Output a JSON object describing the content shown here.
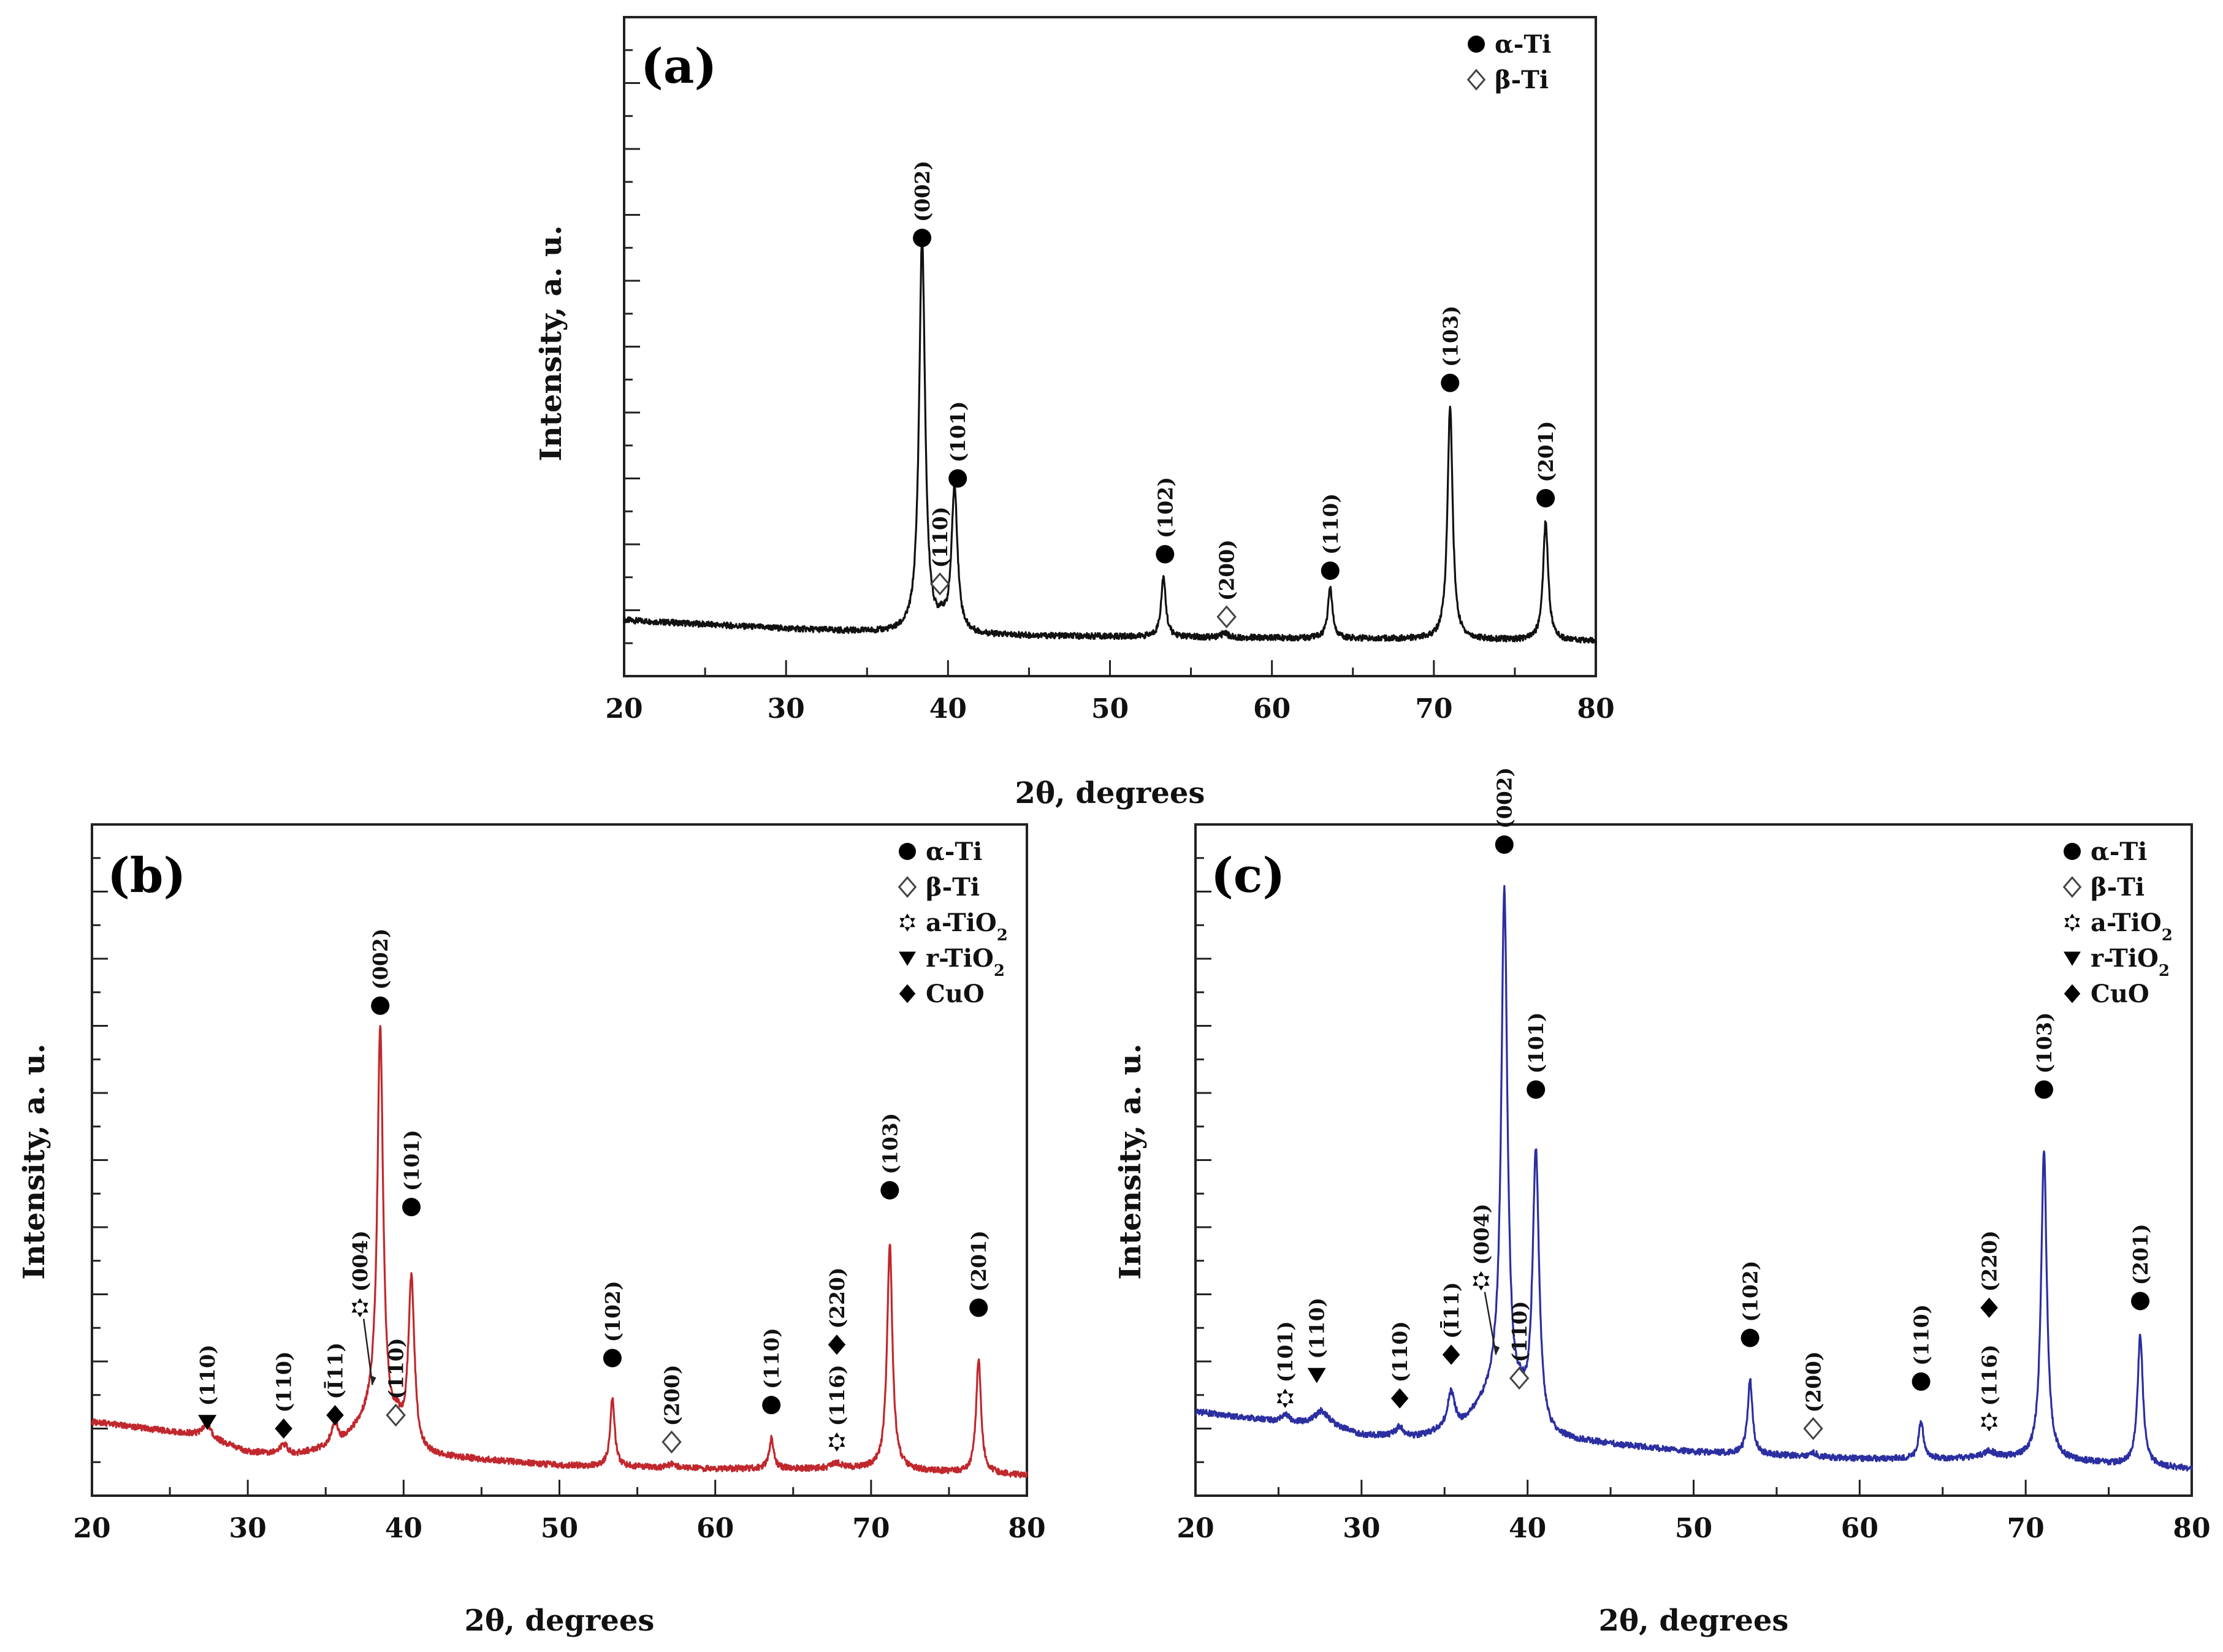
{
  "figure": {
    "description_labels": [
      "(a)",
      "(b)",
      "(c)"
    ]
  },
  "chart_data": [
    {
      "type": "line",
      "panel": "(a)",
      "xlabel": "2θ, degrees",
      "ylabel": "Intensity, a. u.",
      "xlim": [
        20,
        80
      ],
      "ylim": [
        0,
        100
      ],
      "xticks": [
        "20",
        "30",
        "40",
        "50",
        "60",
        "70",
        "80"
      ],
      "color": "#111111",
      "legend": {
        "position": "top-right",
        "entries": [
          {
            "symbol": "circle",
            "label": "α-Ti"
          },
          {
            "symbol": "diamond-open",
            "label": "β-Ti"
          }
        ]
      },
      "series": [
        {
          "name": "pattern",
          "baseline": [
            [
              20,
              8.5
            ],
            [
              30,
              7.2
            ],
            [
              40,
              6.2
            ],
            [
              50,
              6.0
            ],
            [
              60,
              5.8
            ],
            [
              70,
              5.6
            ],
            [
              80,
              5.3
            ]
          ],
          "peaks": [
            {
              "x": 38.4,
              "height": 60.0,
              "width": 0.28
            },
            {
              "x": 39.6,
              "height": 1.5,
              "width": 0.25
            },
            {
              "x": 40.4,
              "height": 22.0,
              "width": 0.28
            },
            {
              "x": 53.3,
              "height": 9.0,
              "width": 0.22
            },
            {
              "x": 57.1,
              "height": 0.8,
              "width": 0.25
            },
            {
              "x": 63.6,
              "height": 7.5,
              "width": 0.22
            },
            {
              "x": 71.0,
              "height": 35.5,
              "width": 0.24
            },
            {
              "x": 76.9,
              "height": 18.0,
              "width": 0.24
            }
          ]
        }
      ],
      "annotations": [
        {
          "x": 38.4,
          "y": 66.5,
          "marker": "circle",
          "label": "(002)"
        },
        {
          "x": 39.5,
          "y": 14.0,
          "marker": "diamond-open",
          "label": "(110)"
        },
        {
          "x": 40.6,
          "y": 30.0,
          "marker": "circle",
          "label": "(101)"
        },
        {
          "x": 53.4,
          "y": 18.5,
          "marker": "circle",
          "label": "(102)"
        },
        {
          "x": 57.2,
          "y": 9.0,
          "marker": "diamond-open",
          "label": "(200)"
        },
        {
          "x": 63.6,
          "y": 16.0,
          "marker": "circle",
          "label": "(110)"
        },
        {
          "x": 71.0,
          "y": 44.5,
          "marker": "circle",
          "label": "(103)"
        },
        {
          "x": 76.9,
          "y": 27.0,
          "marker": "circle",
          "label": "(201)"
        }
      ]
    },
    {
      "type": "line",
      "panel": "(b)",
      "xlabel": "2θ, degrees",
      "ylabel": "Intensity, a. u.",
      "xlim": [
        20,
        80
      ],
      "ylim": [
        0,
        100
      ],
      "xticks": [
        "20",
        "30",
        "40",
        "50",
        "60",
        "70",
        "80"
      ],
      "color": "#c0282d",
      "legend": {
        "position": "top-right",
        "entries": [
          {
            "symbol": "circle",
            "label": "α-Ti"
          },
          {
            "symbol": "diamond-open",
            "label": "β-Ti"
          },
          {
            "symbol": "star",
            "label": "a-TiO",
            "subscript": "2"
          },
          {
            "symbol": "triangle-down",
            "label": "r-TiO",
            "subscript": "2"
          },
          {
            "symbol": "diamond",
            "label": "CuO"
          }
        ]
      },
      "series": [
        {
          "name": "pattern",
          "baseline": [
            [
              20,
              11.0
            ],
            [
              27,
              9.0
            ],
            [
              30,
              6.5
            ],
            [
              33,
              6.0
            ],
            [
              36,
              7.5
            ],
            [
              38,
              12.0
            ],
            [
              41,
              6.0
            ],
            [
              50,
              4.5
            ],
            [
              60,
              4.0
            ],
            [
              70,
              4.0
            ],
            [
              80,
              3.0
            ]
          ],
          "peaks": [
            {
              "x": 27.4,
              "height": 2.0,
              "width": 0.4
            },
            {
              "x": 32.3,
              "height": 1.5,
              "width": 0.4
            },
            {
              "x": 35.6,
              "height": 3.5,
              "width": 0.35
            },
            {
              "x": 38.5,
              "height": 58.5,
              "width": 0.28
            },
            {
              "x": 39.6,
              "height": 1.5,
              "width": 0.25
            },
            {
              "x": 40.5,
              "height": 25.0,
              "width": 0.3
            },
            {
              "x": 53.4,
              "height": 10.0,
              "width": 0.22
            },
            {
              "x": 57.2,
              "height": 0.6,
              "width": 0.3
            },
            {
              "x": 63.6,
              "height": 4.5,
              "width": 0.22
            },
            {
              "x": 67.8,
              "height": 0.8,
              "width": 0.5
            },
            {
              "x": 71.2,
              "height": 33.5,
              "width": 0.26
            },
            {
              "x": 76.9,
              "height": 17.0,
              "width": 0.24
            }
          ]
        }
      ],
      "annotations": [
        {
          "x": 27.4,
          "y": 11.0,
          "marker": "triangle-down",
          "label": "(110)"
        },
        {
          "x": 32.3,
          "y": 10.0,
          "marker": "diamond",
          "label": "(110)"
        },
        {
          "x": 35.6,
          "y": 12.0,
          "marker": "diamond",
          "label": "(Ī11)"
        },
        {
          "x": 37.2,
          "y": 28.0,
          "marker": "star",
          "label": "(004)",
          "arrow_to": [
            38.0,
            16.5
          ]
        },
        {
          "x": 39.5,
          "y": 12.0,
          "marker": "diamond-open",
          "label": "(110)"
        },
        {
          "x": 38.5,
          "y": 73.0,
          "marker": "circle",
          "label": "(002)"
        },
        {
          "x": 40.5,
          "y": 43.0,
          "marker": "circle",
          "label": "(101)"
        },
        {
          "x": 53.4,
          "y": 20.5,
          "marker": "circle",
          "label": "(102)"
        },
        {
          "x": 57.2,
          "y": 8.0,
          "marker": "diamond-open",
          "label": "(200)"
        },
        {
          "x": 63.6,
          "y": 13.5,
          "marker": "circle",
          "label": "(110)"
        },
        {
          "x": 67.8,
          "y": 8.0,
          "marker": "star",
          "label": "(116)"
        },
        {
          "x": 67.8,
          "y": 22.5,
          "marker": "diamond",
          "label": "(220)"
        },
        {
          "x": 71.2,
          "y": 45.5,
          "marker": "circle",
          "label": "(103)"
        },
        {
          "x": 76.9,
          "y": 28.0,
          "marker": "circle",
          "label": "(201)"
        }
      ]
    },
    {
      "type": "line",
      "panel": "(c)",
      "xlabel": "2θ, degrees",
      "ylabel": "Intensity, a. u.",
      "xlim": [
        20,
        80
      ],
      "ylim": [
        0,
        100
      ],
      "xticks": [
        "20",
        "30",
        "40",
        "50",
        "60",
        "70",
        "80"
      ],
      "color": "#2b2fa0",
      "legend": {
        "position": "top-right",
        "entries": [
          {
            "symbol": "circle",
            "label": "α-Ti"
          },
          {
            "symbol": "diamond-open",
            "label": "β-Ti"
          },
          {
            "symbol": "star",
            "label": "a-TiO",
            "subscript": "2"
          },
          {
            "symbol": "triangle-down",
            "label": "r-TiO",
            "subscript": "2"
          },
          {
            "symbol": "diamond",
            "label": "CuO"
          }
        ]
      },
      "series": [
        {
          "name": "pattern",
          "baseline": [
            [
              20,
              12.5
            ],
            [
              25,
              11.0
            ],
            [
              28,
              10.5
            ],
            [
              30,
              9.0
            ],
            [
              33,
              8.5
            ],
            [
              36,
              10.0
            ],
            [
              38,
              15.0
            ],
            [
              41,
              8.5
            ],
            [
              50,
              6.5
            ],
            [
              60,
              5.5
            ],
            [
              70,
              5.5
            ],
            [
              80,
              4.0
            ]
          ],
          "peaks": [
            {
              "x": 25.4,
              "height": 1.0,
              "width": 0.4
            },
            {
              "x": 27.6,
              "height": 2.0,
              "width": 0.6
            },
            {
              "x": 32.3,
              "height": 1.5,
              "width": 0.4
            },
            {
              "x": 35.4,
              "height": 5.5,
              "width": 0.35
            },
            {
              "x": 38.6,
              "height": 76.0,
              "width": 0.28
            },
            {
              "x": 39.6,
              "height": 1.5,
              "width": 0.25
            },
            {
              "x": 40.5,
              "height": 41.0,
              "width": 0.3
            },
            {
              "x": 53.4,
              "height": 11.0,
              "width": 0.22
            },
            {
              "x": 57.2,
              "height": 0.6,
              "width": 0.3
            },
            {
              "x": 63.7,
              "height": 5.5,
              "width": 0.22
            },
            {
              "x": 67.8,
              "height": 1.0,
              "width": 0.6
            },
            {
              "x": 71.1,
              "height": 46.0,
              "width": 0.26
            },
            {
              "x": 76.9,
              "height": 19.5,
              "width": 0.24
            }
          ]
        }
      ],
      "annotations": [
        {
          "x": 25.4,
          "y": 14.5,
          "marker": "star",
          "label": "(101)"
        },
        {
          "x": 27.3,
          "y": 18.0,
          "marker": "triangle-down",
          "label": "(110)"
        },
        {
          "x": 32.3,
          "y": 14.5,
          "marker": "diamond",
          "label": "(110)"
        },
        {
          "x": 35.4,
          "y": 21.0,
          "marker": "diamond",
          "label": "(Ī11)"
        },
        {
          "x": 37.2,
          "y": 32.0,
          "marker": "star",
          "label": "(004)",
          "arrow_to": [
            38.1,
            21.0
          ]
        },
        {
          "x": 39.5,
          "y": 17.5,
          "marker": "diamond-open",
          "label": "(110)"
        },
        {
          "x": 38.6,
          "y": 97.0,
          "marker": "circle",
          "label": "(002)"
        },
        {
          "x": 40.5,
          "y": 60.5,
          "marker": "circle",
          "label": "(101)"
        },
        {
          "x": 53.4,
          "y": 23.5,
          "marker": "circle",
          "label": "(102)"
        },
        {
          "x": 57.2,
          "y": 10.0,
          "marker": "diamond-open",
          "label": "(200)"
        },
        {
          "x": 63.7,
          "y": 17.0,
          "marker": "circle",
          "label": "(110)"
        },
        {
          "x": 67.8,
          "y": 11.0,
          "marker": "star",
          "label": "(116)"
        },
        {
          "x": 67.8,
          "y": 28.0,
          "marker": "diamond",
          "label": "(220)"
        },
        {
          "x": 71.1,
          "y": 60.5,
          "marker": "circle",
          "label": "(103)"
        },
        {
          "x": 76.9,
          "y": 29.0,
          "marker": "circle",
          "label": "(201)"
        }
      ]
    }
  ]
}
